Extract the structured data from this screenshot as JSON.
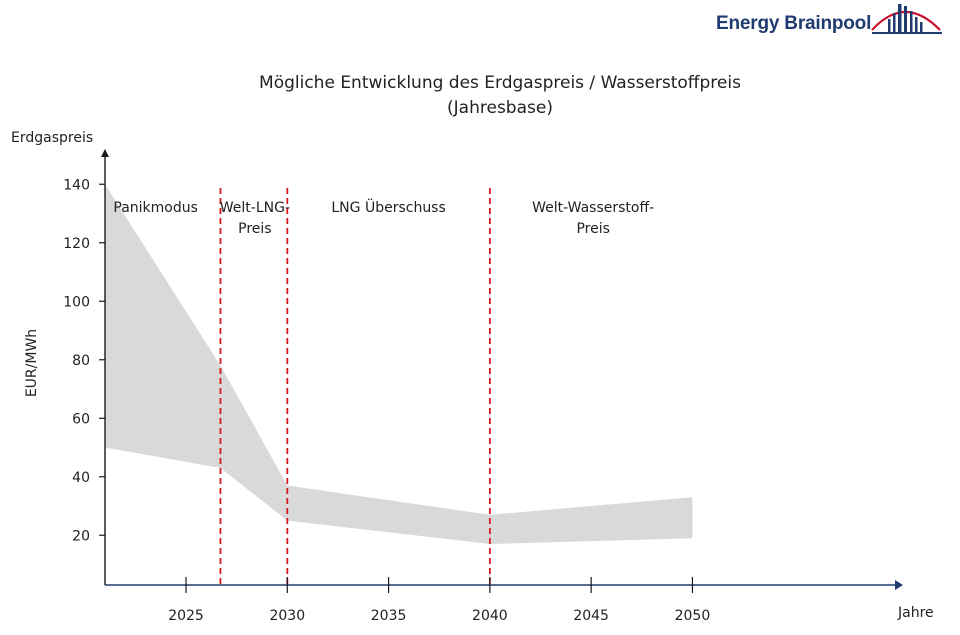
{
  "brand": {
    "name": "Energy Brainpool",
    "logo_icon": "bridge-arc-icon",
    "color": "#1f3b70",
    "accent": "#c8102e"
  },
  "chart_data": {
    "type": "area",
    "title": "Mögliche Entwicklung des Erdgaspreis / Wasserstoffpreis",
    "subtitle": "(Jahresbase)",
    "axis_top_label": "Erdgaspreis",
    "ylabel": "EUR/MWh",
    "xlabel": "Jahre",
    "xlim": [
      2021,
      2060
    ],
    "ylim": [
      3,
      150
    ],
    "x_ticks": [
      2025,
      2030,
      2035,
      2040,
      2045,
      2050
    ],
    "x_tick_labels": [
      "2025",
      "2030",
      "2035",
      "2040",
      "2045",
      "2050"
    ],
    "y_ticks": [
      20,
      40,
      60,
      80,
      100,
      120,
      140
    ],
    "y_tick_labels": [
      "20",
      "40",
      "60",
      "80",
      "100",
      "120",
      "140"
    ],
    "band_color": "#d9d9d9",
    "series": [
      {
        "x": [
          2021,
          2026.7,
          2030,
          2040,
          2050
        ],
        "values": [
          140,
          78,
          37,
          27,
          33
        ]
      },
      {
        "x": [
          2021,
          2026.7,
          2030,
          2040,
          2050
        ],
        "values": [
          50,
          43,
          25,
          17,
          19
        ]
      }
    ],
    "phase_boundaries": [
      2026.7,
      2030,
      2040
    ],
    "boundary_color": "#d7191c",
    "phases": [
      {
        "lines": [
          "Panikmodus"
        ],
        "x": 2023.5
      },
      {
        "lines": [
          "Welt-LNG-",
          "Preis"
        ],
        "x": 2028.4
      },
      {
        "lines": [
          "LNG Überschuss"
        ],
        "x": 2035
      },
      {
        "lines": [
          "Welt-Wasserstoff-",
          "Preis"
        ],
        "x": 2045.1
      }
    ]
  }
}
